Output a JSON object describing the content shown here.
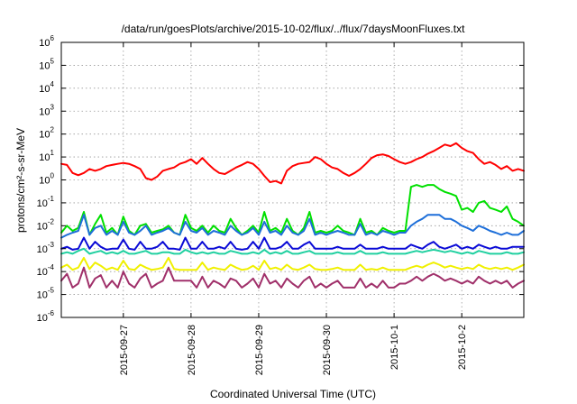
{
  "chart_data": {
    "type": "line",
    "title": "/data/run/goesPlots/archive/2015-10-02/flux/../flux/7daysMoonFluxes.txt",
    "xlabel": "Coordinated Universal Time (UTC)",
    "ylabel": "protons/cm²-s-sr-MeV",
    "y_scale": "log",
    "ylim": [
      1e-06,
      1000000.0
    ],
    "xlim": [
      "2015-09-26T02:00",
      "2015-10-02T22:00"
    ],
    "x_ticks": [
      "2015-09-27",
      "2015-09-28",
      "2015-09-29",
      "2015-09-30",
      "2015-10-1",
      "2015-10-2"
    ],
    "x_tick_times": [
      "2015-09-27T00:00",
      "2015-09-28T00:00",
      "2015-09-29T00:00",
      "2015-09-30T00:00",
      "2015-10-01T00:00",
      "2015-10-02T00:00"
    ],
    "y_tick_exponents": [
      -6,
      -5,
      -4,
      -3,
      -2,
      -1,
      0,
      1,
      2,
      3,
      4,
      5,
      6
    ],
    "grid": true,
    "legend": "none",
    "x": [
      "2015-09-26T02:00",
      "2015-09-26T04:00",
      "2015-09-26T06:00",
      "2015-09-26T08:00",
      "2015-09-26T10:00",
      "2015-09-26T12:00",
      "2015-09-26T14:00",
      "2015-09-26T16:00",
      "2015-09-26T18:00",
      "2015-09-26T20:00",
      "2015-09-26T22:00",
      "2015-09-27T00:00",
      "2015-09-27T02:00",
      "2015-09-27T04:00",
      "2015-09-27T06:00",
      "2015-09-27T08:00",
      "2015-09-27T10:00",
      "2015-09-27T12:00",
      "2015-09-27T14:00",
      "2015-09-27T16:00",
      "2015-09-27T18:00",
      "2015-09-27T20:00",
      "2015-09-27T22:00",
      "2015-09-28T00:00",
      "2015-09-28T02:00",
      "2015-09-28T04:00",
      "2015-09-28T06:00",
      "2015-09-28T08:00",
      "2015-09-28T10:00",
      "2015-09-28T12:00",
      "2015-09-28T14:00",
      "2015-09-28T16:00",
      "2015-09-28T18:00",
      "2015-09-28T20:00",
      "2015-09-28T22:00",
      "2015-09-29T00:00",
      "2015-09-29T02:00",
      "2015-09-29T04:00",
      "2015-09-29T06:00",
      "2015-09-29T08:00",
      "2015-09-29T10:00",
      "2015-09-29T12:00",
      "2015-09-29T14:00",
      "2015-09-29T16:00",
      "2015-09-29T18:00",
      "2015-09-29T20:00",
      "2015-09-29T22:00",
      "2015-09-30T00:00",
      "2015-09-30T02:00",
      "2015-09-30T04:00",
      "2015-09-30T06:00",
      "2015-09-30T08:00",
      "2015-09-30T10:00",
      "2015-09-30T12:00",
      "2015-09-30T14:00",
      "2015-09-30T16:00",
      "2015-09-30T18:00",
      "2015-09-30T20:00",
      "2015-09-30T22:00",
      "2015-10-01T00:00",
      "2015-10-01T02:00",
      "2015-10-01T04:00",
      "2015-10-01T06:00",
      "2015-10-01T08:00",
      "2015-10-01T10:00",
      "2015-10-01T12:00",
      "2015-10-01T14:00",
      "2015-10-01T16:00",
      "2015-10-01T18:00",
      "2015-10-01T20:00",
      "2015-10-01T22:00",
      "2015-10-02T00:00",
      "2015-10-02T02:00",
      "2015-10-02T04:00",
      "2015-10-02T06:00",
      "2015-10-02T08:00",
      "2015-10-02T10:00",
      "2015-10-02T12:00",
      "2015-10-02T14:00",
      "2015-10-02T16:00",
      "2015-10-02T18:00",
      "2015-10-02T20:00",
      "2015-10-02T22:00"
    ],
    "series": [
      {
        "color": "#ff0000",
        "values": [
          5.0,
          4.5,
          2.0,
          1.6,
          2.0,
          3.0,
          2.5,
          3.0,
          4.0,
          4.5,
          5.0,
          5.5,
          5.0,
          4.0,
          3.0,
          1.2,
          1.0,
          1.4,
          2.5,
          3.0,
          3.5,
          5.0,
          6.0,
          8.0,
          5.0,
          9.0,
          5.0,
          3.0,
          2.0,
          1.8,
          2.5,
          3.5,
          4.5,
          6.0,
          5.0,
          3.0,
          1.5,
          0.8,
          0.9,
          0.7,
          2.5,
          4.0,
          5.0,
          5.5,
          6.0,
          10.0,
          8.0,
          5.0,
          3.5,
          3.0,
          2.0,
          1.5,
          2.0,
          3.0,
          5.0,
          9.0,
          12.0,
          13.0,
          11.0,
          8.0,
          6.0,
          5.0,
          6.0,
          8.0,
          10.0,
          14.0,
          18.0,
          25.0,
          35.0,
          30.0,
          40.0,
          25.0,
          18.0,
          15.0,
          8.0,
          5.0,
          6.0,
          4.5,
          3.0,
          4.0,
          2.5,
          3.0,
          2.5
        ]
      },
      {
        "color": "#00e000",
        "values": [
          0.005,
          0.01,
          0.006,
          0.008,
          0.04,
          0.004,
          0.012,
          0.03,
          0.005,
          0.008,
          0.004,
          0.025,
          0.006,
          0.004,
          0.01,
          0.012,
          0.005,
          0.006,
          0.007,
          0.01,
          0.005,
          0.004,
          0.03,
          0.008,
          0.006,
          0.01,
          0.005,
          0.01,
          0.006,
          0.005,
          0.02,
          0.008,
          0.004,
          0.006,
          0.01,
          0.005,
          0.04,
          0.006,
          0.008,
          0.005,
          0.02,
          0.006,
          0.004,
          0.008,
          0.04,
          0.005,
          0.006,
          0.005,
          0.006,
          0.01,
          0.006,
          0.005,
          0.004,
          0.02,
          0.005,
          0.006,
          0.004,
          0.008,
          0.006,
          0.005,
          0.006,
          0.006,
          0.5,
          0.6,
          0.5,
          0.6,
          0.6,
          0.4,
          0.3,
          0.25,
          0.2,
          0.05,
          0.06,
          0.04,
          0.1,
          0.12,
          0.06,
          0.05,
          0.04,
          0.07,
          0.02,
          0.015,
          0.01
        ]
      },
      {
        "color": "#1e6fd9",
        "values": [
          0.003,
          0.004,
          0.005,
          0.006,
          0.03,
          0.004,
          0.008,
          0.01,
          0.004,
          0.006,
          0.004,
          0.015,
          0.005,
          0.004,
          0.006,
          0.01,
          0.004,
          0.005,
          0.006,
          0.008,
          0.005,
          0.004,
          0.015,
          0.006,
          0.005,
          0.008,
          0.004,
          0.006,
          0.005,
          0.004,
          0.01,
          0.006,
          0.004,
          0.005,
          0.008,
          0.004,
          0.015,
          0.005,
          0.006,
          0.004,
          0.01,
          0.005,
          0.004,
          0.006,
          0.02,
          0.004,
          0.005,
          0.004,
          0.005,
          0.006,
          0.005,
          0.004,
          0.004,
          0.012,
          0.004,
          0.005,
          0.004,
          0.006,
          0.005,
          0.004,
          0.005,
          0.005,
          0.01,
          0.015,
          0.02,
          0.03,
          0.03,
          0.03,
          0.02,
          0.02,
          0.015,
          0.01,
          0.008,
          0.006,
          0.01,
          0.008,
          0.006,
          0.005,
          0.004,
          0.005,
          0.004,
          0.004,
          0.006
        ]
      },
      {
        "color": "#0a0ad6",
        "values": [
          0.001,
          0.0012,
          0.0009,
          0.001,
          0.003,
          0.001,
          0.002,
          0.0012,
          0.0009,
          0.001,
          0.001,
          0.0025,
          0.001,
          0.0009,
          0.002,
          0.001,
          0.001,
          0.0012,
          0.002,
          0.001,
          0.001,
          0.0009,
          0.003,
          0.001,
          0.001,
          0.002,
          0.001,
          0.001,
          0.0012,
          0.001,
          0.002,
          0.001,
          0.0009,
          0.001,
          0.002,
          0.001,
          0.003,
          0.001,
          0.001,
          0.0012,
          0.002,
          0.001,
          0.001,
          0.0015,
          0.002,
          0.001,
          0.001,
          0.001,
          0.001,
          0.0012,
          0.001,
          0.001,
          0.001,
          0.0015,
          0.001,
          0.001,
          0.001,
          0.0012,
          0.001,
          0.001,
          0.001,
          0.001,
          0.0015,
          0.0012,
          0.001,
          0.0015,
          0.002,
          0.0012,
          0.001,
          0.0012,
          0.0015,
          0.001,
          0.0012,
          0.001,
          0.0015,
          0.0012,
          0.001,
          0.0012,
          0.001,
          0.001,
          0.0012,
          0.0012,
          0.0012
        ]
      },
      {
        "color": "#20d0a0",
        "values": [
          0.0006,
          0.0007,
          0.0006,
          0.0008,
          0.001,
          0.0006,
          0.0007,
          0.0008,
          0.0006,
          0.0007,
          0.0006,
          0.0008,
          0.0006,
          0.0006,
          0.0007,
          0.0008,
          0.0006,
          0.0006,
          0.0007,
          0.0007,
          0.0006,
          0.0006,
          0.0009,
          0.0007,
          0.0006,
          0.0007,
          0.0006,
          0.0007,
          0.0006,
          0.0006,
          0.0008,
          0.0007,
          0.0006,
          0.0006,
          0.0007,
          0.0006,
          0.0009,
          0.0006,
          0.0007,
          0.0006,
          0.0008,
          0.0006,
          0.0006,
          0.0007,
          0.0008,
          0.0006,
          0.0006,
          0.0006,
          0.0006,
          0.0007,
          0.0006,
          0.0006,
          0.0006,
          0.0008,
          0.0006,
          0.0006,
          0.0006,
          0.0007,
          0.0006,
          0.0006,
          0.0006,
          0.0006,
          0.0007,
          0.0008,
          0.0007,
          0.0008,
          0.0009,
          0.0008,
          0.0007,
          0.0008,
          0.0007,
          0.0006,
          0.0007,
          0.0006,
          0.0008,
          0.0007,
          0.0006,
          0.0006,
          0.0006,
          0.0007,
          0.0006,
          0.0006,
          0.0007
        ]
      },
      {
        "color": "#f0f000",
        "values": [
          0.00015,
          0.0002,
          0.00012,
          0.00015,
          0.0004,
          0.00013,
          0.00025,
          0.00018,
          0.00012,
          0.00015,
          0.00012,
          0.0003,
          0.00013,
          0.00012,
          0.0002,
          0.00015,
          0.00012,
          0.00013,
          0.00015,
          0.0004,
          0.00013,
          0.00012,
          0.00012,
          0.00012,
          0.00012,
          0.00025,
          0.00012,
          0.00015,
          0.00013,
          0.00012,
          0.0002,
          0.00015,
          0.00012,
          0.00013,
          0.00018,
          0.00012,
          0.0003,
          0.00013,
          0.00015,
          0.00012,
          0.0002,
          0.00013,
          0.00012,
          0.00015,
          0.0002,
          0.00013,
          0.00012,
          0.00012,
          0.00013,
          0.00015,
          0.00012,
          0.00012,
          0.00012,
          0.0002,
          0.00012,
          0.00013,
          0.00012,
          0.00015,
          0.00012,
          0.00012,
          0.00012,
          0.00012,
          0.00015,
          0.00018,
          0.00015,
          0.0002,
          0.00025,
          0.0002,
          0.00015,
          0.00018,
          0.00015,
          0.00013,
          0.00015,
          0.00013,
          0.0002,
          0.00015,
          0.00013,
          0.00015,
          0.00013,
          0.00015,
          0.00012,
          0.00015,
          0.0002
        ]
      },
      {
        "color": "#a0306a",
        "values": [
          4e-05,
          8e-05,
          2e-05,
          3e-05,
          0.00015,
          2e-05,
          5e-05,
          7e-05,
          2e-05,
          4e-05,
          2e-05,
          0.0001,
          3e-05,
          2e-05,
          5e-05,
          8e-05,
          2e-05,
          3e-05,
          4e-05,
          0.00015,
          4e-05,
          4e-05,
          4e-05,
          4e-05,
          2e-05,
          6e-05,
          2e-05,
          4e-05,
          3e-05,
          2e-05,
          5e-05,
          4e-05,
          2e-05,
          3e-05,
          5e-05,
          2e-05,
          8e-05,
          3e-05,
          4e-05,
          2e-05,
          5e-05,
          3e-05,
          2e-05,
          4e-05,
          6e-05,
          2e-05,
          3e-05,
          2e-05,
          3e-05,
          4e-05,
          2e-05,
          2e-05,
          2e-05,
          5e-05,
          2e-05,
          3e-05,
          2e-05,
          4e-05,
          2e-05,
          2e-05,
          3e-05,
          3e-05,
          4e-05,
          6e-05,
          4e-05,
          6e-05,
          8e-05,
          6e-05,
          4e-05,
          5e-05,
          4e-05,
          3e-05,
          4e-05,
          3e-05,
          6e-05,
          4e-05,
          3e-05,
          4e-05,
          3e-05,
          4e-05,
          2e-05,
          3e-05,
          4e-05
        ]
      }
    ]
  }
}
